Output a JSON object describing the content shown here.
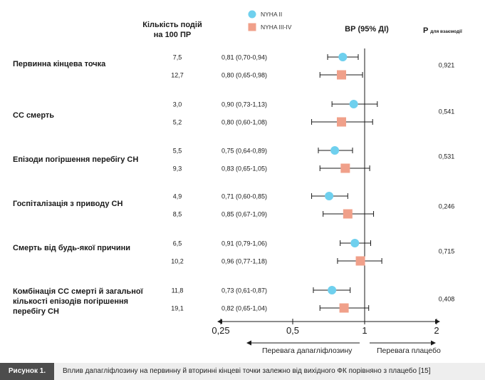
{
  "header": {
    "events_line1": "Кількість подій",
    "events_line2": "на 100 ПР",
    "hr_label": "ВР (95% ДІ)",
    "p_main": "P",
    "p_sub": "для взаємодії"
  },
  "legend": {
    "item1": "NYHA II",
    "item2": "NYHA III-IV"
  },
  "endpoints": [
    {
      "line1": "Первинна кінцева точка",
      "line2": "",
      "line3": ""
    },
    {
      "line1": "СС смерть",
      "line2": "",
      "line3": ""
    },
    {
      "line1": "Епізоди погіршення перебігу СН",
      "line2": "",
      "line3": ""
    },
    {
      "line1": "Госпіталізація з приводу СН",
      "line2": "",
      "line3": ""
    },
    {
      "line1": "Смерть від будь-якої причини",
      "line2": "",
      "line3": ""
    },
    {
      "line1": "Комбінація СС смерті й загальної",
      "line2": "кількості епізодів погіршення",
      "line3": "перебігу СН"
    }
  ],
  "favor": {
    "left": "Перевага дапагліфлозину",
    "right": "Перевага плацебо"
  },
  "caption": {
    "figure": "Рисунок 1.",
    "text": "Вплив дапагліфлозину на первинну й вторинні кінцеві точки залежно від вихідного ФК порівняно з плацебо [15]"
  },
  "colors": {
    "nyha2": "#6fd0ee",
    "nyha34": "#f0a08a"
  },
  "chart_data": {
    "type": "forest",
    "xscale": "log",
    "xlim": [
      0.25,
      2
    ],
    "xticks": [
      0.25,
      0.5,
      1,
      2
    ],
    "xtick_labels": [
      "0,25",
      "0,5",
      "1",
      "2"
    ],
    "reference_line": 1,
    "series": [
      {
        "name": "NYHA II",
        "marker": "circle",
        "color": "#6fd0ee"
      },
      {
        "name": "NYHA III-IV",
        "marker": "square",
        "color": "#f0a08a"
      }
    ],
    "rows": [
      {
        "group": 0,
        "series": 0,
        "events": "7,5",
        "ci_text": "0,81 (0,70-0,94)",
        "hr": 0.81,
        "lo": 0.7,
        "hi": 0.94
      },
      {
        "group": 0,
        "series": 1,
        "events": "12,7",
        "ci_text": "0,80 (0,65-0,98)",
        "hr": 0.8,
        "lo": 0.65,
        "hi": 0.98
      },
      {
        "group": 1,
        "series": 0,
        "events": "3,0",
        "ci_text": "0,90 (0,73-1,13)",
        "hr": 0.9,
        "lo": 0.73,
        "hi": 1.13
      },
      {
        "group": 1,
        "series": 1,
        "events": "5,2",
        "ci_text": "0,80 (0,60-1,08)",
        "hr": 0.8,
        "lo": 0.6,
        "hi": 1.08
      },
      {
        "group": 2,
        "series": 0,
        "events": "5,5",
        "ci_text": "0,75 (0,64-0,89)",
        "hr": 0.75,
        "lo": 0.64,
        "hi": 0.89
      },
      {
        "group": 2,
        "series": 1,
        "events": "9,3",
        "ci_text": "0,83 (0,65-1,05)",
        "hr": 0.83,
        "lo": 0.65,
        "hi": 1.05
      },
      {
        "group": 3,
        "series": 0,
        "events": "4,9",
        "ci_text": "0,71 (0,60-0,85)",
        "hr": 0.71,
        "lo": 0.6,
        "hi": 0.85
      },
      {
        "group": 3,
        "series": 1,
        "events": "8,5",
        "ci_text": "0,85 (0,67-1,09)",
        "hr": 0.85,
        "lo": 0.67,
        "hi": 1.09
      },
      {
        "group": 4,
        "series": 0,
        "events": "6,5",
        "ci_text": "0,91 (0,79-1,06)",
        "hr": 0.91,
        "lo": 0.79,
        "hi": 1.06
      },
      {
        "group": 4,
        "series": 1,
        "events": "10,2",
        "ci_text": "0,96 (0,77-1,18)",
        "hr": 0.96,
        "lo": 0.77,
        "hi": 1.18
      },
      {
        "group": 5,
        "series": 0,
        "events": "11,8",
        "ci_text": "0,73 (0,61-0,87)",
        "hr": 0.73,
        "lo": 0.61,
        "hi": 0.87
      },
      {
        "group": 5,
        "series": 1,
        "events": "19,1",
        "ci_text": "0,82 (0,65-1,04)",
        "hr": 0.82,
        "lo": 0.65,
        "hi": 1.04
      }
    ],
    "p_interaction": [
      "0,921",
      "0,541",
      "0,531",
      "0,246",
      "0,715",
      "0,408"
    ]
  }
}
